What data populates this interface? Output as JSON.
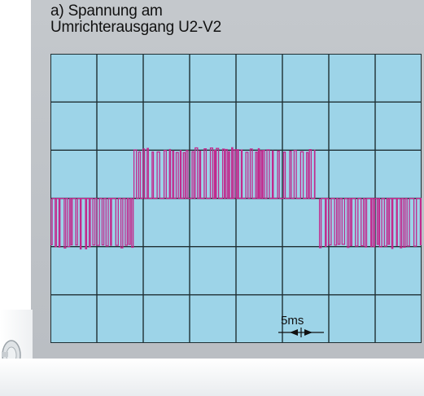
{
  "title": {
    "line1": "a) Spannung am",
    "line2": "Umrichterausgang U2-V2"
  },
  "annotation": {
    "time_scale_label": "5ms"
  },
  "colors": {
    "screen": "#9dd4e8",
    "grid": "#1f2f33",
    "trace": "#c2298d",
    "panel": "#c0c4c8"
  },
  "chart_data": {
    "type": "line",
    "title": "a) Spannung am Umrichterausgang U2-V2",
    "xlabel": "",
    "ylabel": "",
    "grid": true,
    "divisions": {
      "x": 8,
      "y": 6
    },
    "time_per_division_ms": 5,
    "xlim_ms": [
      0,
      40
    ],
    "ylim_div": [
      -3,
      3
    ],
    "series": [
      {
        "segments": [
          {
            "t_start_ms": 0.0,
            "t_end_ms": 9.0,
            "level_div": -1.0,
            "base_div": 0.0
          },
          {
            "t_start_ms": 9.0,
            "t_end_ms": 28.5,
            "level_div": 1.0,
            "base_div": 0.0
          },
          {
            "t_start_ms": 29.0,
            "t_end_ms": 40.0,
            "level_div": -1.0,
            "base_div": 0.0
          }
        ]
      }
    ]
  }
}
